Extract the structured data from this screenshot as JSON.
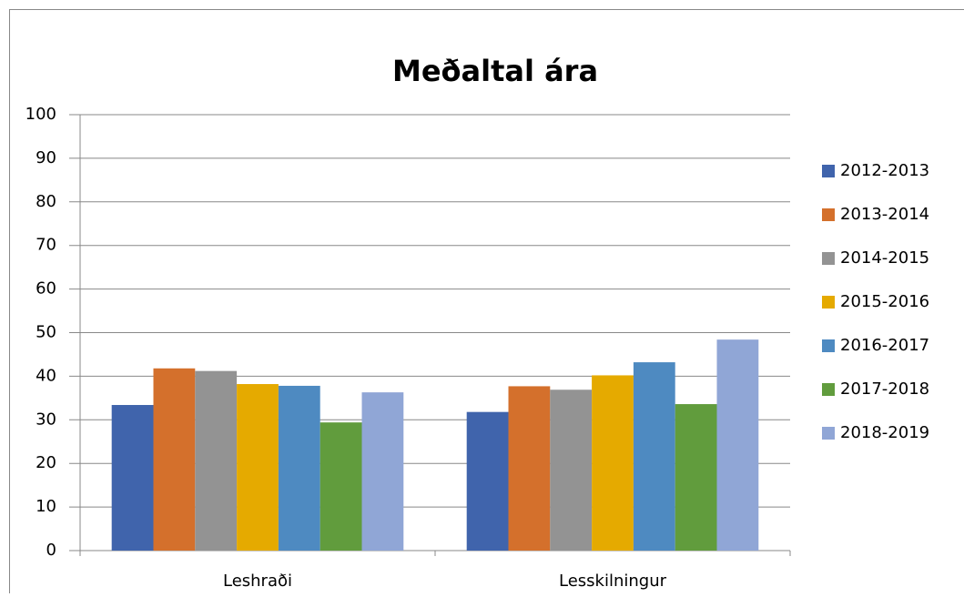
{
  "chart_data": {
    "type": "bar",
    "title": "Meðaltal ára",
    "categories": [
      "Leshraði",
      "Lesskilningur"
    ],
    "series": [
      {
        "name": "2012-2013",
        "color": "#4064ac",
        "values": [
          33.4,
          31.8
        ]
      },
      {
        "name": "2013-2014",
        "color": "#d4702c",
        "values": [
          41.8,
          37.7
        ]
      },
      {
        "name": "2014-2015",
        "color": "#939393",
        "values": [
          41.2,
          36.9
        ]
      },
      {
        "name": "2015-2016",
        "color": "#e5aa00",
        "values": [
          38.2,
          40.2
        ]
      },
      {
        "name": "2016-2017",
        "color": "#4e8ac1",
        "values": [
          37.8,
          43.2
        ]
      },
      {
        "name": "2017-2018",
        "color": "#619c3d",
        "values": [
          29.4,
          33.6
        ]
      },
      {
        "name": "2018-2019",
        "color": "#90a6d6",
        "values": [
          36.3,
          48.4
        ]
      }
    ],
    "ylim": [
      0,
      100
    ],
    "yticks": [
      0,
      10,
      20,
      30,
      40,
      50,
      60,
      70,
      80,
      90,
      100
    ],
    "grid": true,
    "legend": "right"
  }
}
